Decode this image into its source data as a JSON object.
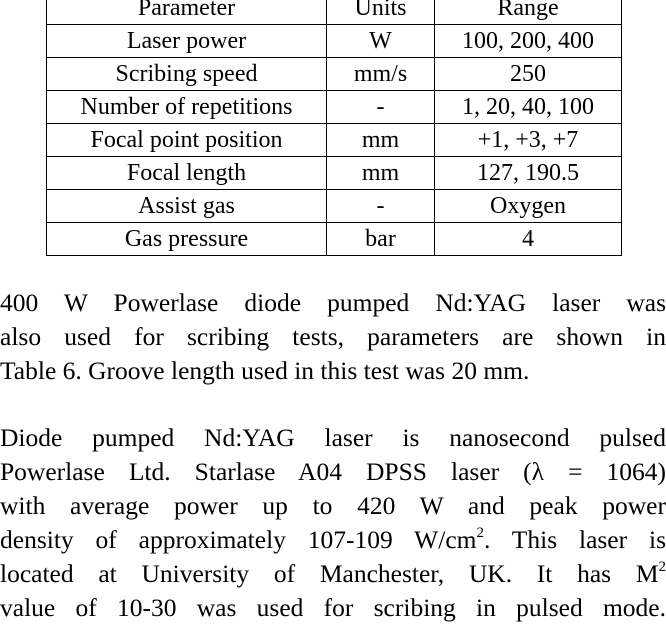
{
  "table": {
    "headers": [
      "Parameter",
      "Units",
      "Range"
    ],
    "rows": [
      [
        "Laser power",
        "W",
        "100, 200, 400"
      ],
      [
        "Scribing speed",
        "mm/s",
        "250"
      ],
      [
        "Number of repetitions",
        "-",
        "1, 20, 40, 100"
      ],
      [
        "Focal point position",
        "mm",
        "+1, +3, +7"
      ],
      [
        "Focal length",
        "mm",
        "127, 190.5"
      ],
      [
        "Assist gas",
        "-",
        "Oxygen"
      ],
      [
        "Gas pressure",
        "bar",
        "4"
      ]
    ]
  },
  "paragraph1": {
    "lines": [
      "400 W Powerlase diode pumped Nd:YAG laser was",
      "also used for scribing tests, parameters are shown in",
      "Table 6. Groove length used in this test was 20 mm."
    ]
  },
  "paragraph2": {
    "line1": "Diode pumped Nd:YAG laser is nanosecond pulsed",
    "line2": "Powerlase Ltd. Starlase A04 DPSS laser (λ = 1064)",
    "line3": "with average power up to 420 W and peak power",
    "line4_before_sup": "density of approximately 107-109 W/cm",
    "line4_sup": "2",
    "line4_after_sup": ". This laser is",
    "line5_before_sup": "located at University of Manchester, UK. It has  M",
    "line5_sup": "2",
    "line6": "value of 10-30 was used for scribing in pulsed mode."
  }
}
